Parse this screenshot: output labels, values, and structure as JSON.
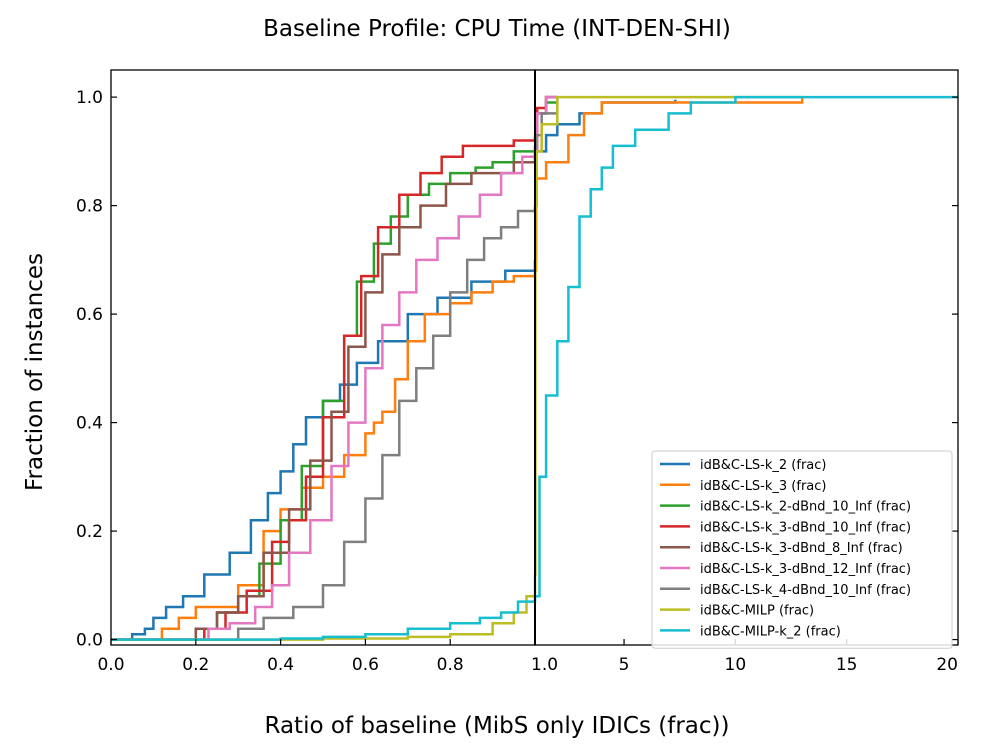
{
  "chart_data": {
    "type": "line",
    "title": "Baseline Profile: CPU Time (INT-DEN-SHI)",
    "xlabel": "Ratio of baseline (MibS only IDICs (frac))",
    "ylabel": "Fraction of instances",
    "left_panel": {
      "xlim": [
        0.0,
        1.0
      ],
      "ylim": [
        -0.01,
        1.05
      ],
      "xticks": [
        "0.0",
        "0.2",
        "0.4",
        "0.6",
        "0.8"
      ],
      "yticks": [
        "0.0",
        "0.2",
        "0.4",
        "0.6",
        "0.8",
        "1.0"
      ]
    },
    "right_panel": {
      "xlim": [
        1.0,
        20.0
      ],
      "xticks": [
        "1.0",
        "5",
        "10",
        "15",
        "20"
      ]
    },
    "legend_position": "lower-right",
    "series": [
      {
        "name": "idB&C-LS-k_2 (frac)",
        "color": "#1f77b4",
        "left": [
          [
            0,
            0
          ],
          [
            0.05,
            0
          ],
          [
            0.05,
            0.01
          ],
          [
            0.08,
            0.02
          ],
          [
            0.1,
            0.04
          ],
          [
            0.13,
            0.06
          ],
          [
            0.17,
            0.08
          ],
          [
            0.22,
            0.12
          ],
          [
            0.28,
            0.16
          ],
          [
            0.33,
            0.22
          ],
          [
            0.37,
            0.27
          ],
          [
            0.4,
            0.31
          ],
          [
            0.43,
            0.36
          ],
          [
            0.46,
            0.41
          ],
          [
            0.5,
            0.44
          ],
          [
            0.54,
            0.47
          ],
          [
            0.58,
            0.51
          ],
          [
            0.63,
            0.55
          ],
          [
            0.7,
            0.6
          ],
          [
            0.77,
            0.63
          ],
          [
            0.85,
            0.66
          ],
          [
            0.93,
            0.68
          ],
          [
            1.0,
            0.7
          ]
        ],
        "right": [
          [
            1.0,
            0.7
          ],
          [
            1.05,
            0.9
          ],
          [
            1.5,
            0.93
          ],
          [
            2.0,
            0.95
          ],
          [
            3.0,
            0.97
          ],
          [
            4.0,
            0.99
          ],
          [
            7.3,
            0.995
          ]
        ]
      },
      {
        "name": "idB&C-LS-k_3 (frac)",
        "color": "#ff7f0e",
        "left": [
          [
            0,
            0
          ],
          [
            0.1,
            0
          ],
          [
            0.12,
            0.02
          ],
          [
            0.16,
            0.04
          ],
          [
            0.2,
            0.06
          ],
          [
            0.25,
            0.06
          ],
          [
            0.3,
            0.1
          ],
          [
            0.36,
            0.2
          ],
          [
            0.4,
            0.24
          ],
          [
            0.45,
            0.28
          ],
          [
            0.5,
            0.3
          ],
          [
            0.55,
            0.34
          ],
          [
            0.6,
            0.38
          ],
          [
            0.62,
            0.4
          ],
          [
            0.64,
            0.42
          ],
          [
            0.67,
            0.48
          ],
          [
            0.7,
            0.55
          ],
          [
            0.74,
            0.6
          ],
          [
            0.8,
            0.62
          ],
          [
            0.85,
            0.64
          ],
          [
            0.9,
            0.66
          ],
          [
            0.95,
            0.67
          ],
          [
            1.0,
            0.68
          ]
        ],
        "right": [
          [
            1.0,
            0.68
          ],
          [
            1.05,
            0.85
          ],
          [
            1.5,
            0.88
          ],
          [
            2.5,
            0.93
          ],
          [
            3.2,
            0.97
          ],
          [
            4.0,
            0.99
          ],
          [
            13.0,
            1.0
          ]
        ]
      },
      {
        "name": "idB&C-LS-k_2-dBnd_10_Inf (frac)",
        "color": "#2ca02c",
        "left": [
          [
            0,
            0
          ],
          [
            0.18,
            0
          ],
          [
            0.2,
            0.02
          ],
          [
            0.25,
            0.05
          ],
          [
            0.3,
            0.08
          ],
          [
            0.35,
            0.14
          ],
          [
            0.4,
            0.22
          ],
          [
            0.45,
            0.32
          ],
          [
            0.5,
            0.44
          ],
          [
            0.55,
            0.56
          ],
          [
            0.58,
            0.66
          ],
          [
            0.62,
            0.73
          ],
          [
            0.66,
            0.78
          ],
          [
            0.7,
            0.82
          ],
          [
            0.75,
            0.84
          ],
          [
            0.8,
            0.86
          ],
          [
            0.86,
            0.87
          ],
          [
            0.9,
            0.88
          ],
          [
            0.95,
            0.9
          ],
          [
            1.0,
            0.91
          ]
        ],
        "right": [
          [
            1.0,
            0.91
          ],
          [
            1.1,
            0.97
          ],
          [
            1.5,
            0.99
          ],
          [
            2.0,
            1.0
          ]
        ]
      },
      {
        "name": "idB&C-LS-k_3-dBnd_10_Inf (frac)",
        "color": "#d62728",
        "left": [
          [
            0,
            0
          ],
          [
            0.2,
            0
          ],
          [
            0.22,
            0.02
          ],
          [
            0.27,
            0.05
          ],
          [
            0.32,
            0.09
          ],
          [
            0.38,
            0.18
          ],
          [
            0.42,
            0.22
          ],
          [
            0.46,
            0.3
          ],
          [
            0.5,
            0.41
          ],
          [
            0.55,
            0.56
          ],
          [
            0.59,
            0.67
          ],
          [
            0.63,
            0.76
          ],
          [
            0.68,
            0.82
          ],
          [
            0.73,
            0.86
          ],
          [
            0.78,
            0.89
          ],
          [
            0.83,
            0.91
          ],
          [
            0.9,
            0.91
          ],
          [
            0.95,
            0.92
          ],
          [
            1.0,
            0.93
          ]
        ],
        "right": [
          [
            1.0,
            0.93
          ],
          [
            1.1,
            0.98
          ],
          [
            1.5,
            1.0
          ],
          [
            2.0,
            1.0
          ]
        ]
      },
      {
        "name": "idB&C-LS-k_3-dBnd_8_Inf (frac)",
        "color": "#8c564b",
        "left": [
          [
            0,
            0
          ],
          [
            0.17,
            0
          ],
          [
            0.2,
            0.02
          ],
          [
            0.25,
            0.05
          ],
          [
            0.3,
            0.08
          ],
          [
            0.36,
            0.16
          ],
          [
            0.42,
            0.24
          ],
          [
            0.47,
            0.33
          ],
          [
            0.52,
            0.42
          ],
          [
            0.56,
            0.54
          ],
          [
            0.6,
            0.64
          ],
          [
            0.64,
            0.71
          ],
          [
            0.68,
            0.76
          ],
          [
            0.73,
            0.8
          ],
          [
            0.79,
            0.84
          ],
          [
            0.85,
            0.86
          ],
          [
            0.9,
            0.86
          ],
          [
            0.95,
            0.88
          ],
          [
            1.0,
            0.9
          ]
        ],
        "right": [
          [
            1.0,
            0.9
          ],
          [
            1.1,
            0.97
          ],
          [
            1.5,
            1.0
          ],
          [
            2.0,
            1.0
          ]
        ]
      },
      {
        "name": "idB&C-LS-k_3-dBnd_12_Inf (frac)",
        "color": "#e377c2",
        "left": [
          [
            0,
            0
          ],
          [
            0.2,
            0
          ],
          [
            0.23,
            0.02
          ],
          [
            0.28,
            0.03
          ],
          [
            0.34,
            0.06
          ],
          [
            0.38,
            0.1
          ],
          [
            0.42,
            0.16
          ],
          [
            0.47,
            0.22
          ],
          [
            0.52,
            0.32
          ],
          [
            0.56,
            0.4
          ],
          [
            0.6,
            0.5
          ],
          [
            0.64,
            0.58
          ],
          [
            0.68,
            0.64
          ],
          [
            0.72,
            0.7
          ],
          [
            0.77,
            0.74
          ],
          [
            0.82,
            0.78
          ],
          [
            0.87,
            0.82
          ],
          [
            0.92,
            0.86
          ],
          [
            0.97,
            0.89
          ],
          [
            1.0,
            0.9
          ]
        ],
        "right": [
          [
            1.0,
            0.9
          ],
          [
            1.1,
            0.97
          ],
          [
            1.5,
            1.0
          ],
          [
            2.0,
            1.0
          ]
        ]
      },
      {
        "name": "idB&C-LS-k_4-dBnd_10_Inf (frac)",
        "color": "#7f7f7f",
        "left": [
          [
            0,
            0
          ],
          [
            0.25,
            0
          ],
          [
            0.3,
            0.02
          ],
          [
            0.36,
            0.04
          ],
          [
            0.43,
            0.06
          ],
          [
            0.5,
            0.1
          ],
          [
            0.55,
            0.18
          ],
          [
            0.6,
            0.26
          ],
          [
            0.64,
            0.34
          ],
          [
            0.68,
            0.44
          ],
          [
            0.72,
            0.5
          ],
          [
            0.76,
            0.56
          ],
          [
            0.8,
            0.64
          ],
          [
            0.84,
            0.7
          ],
          [
            0.88,
            0.74
          ],
          [
            0.92,
            0.76
          ],
          [
            0.96,
            0.79
          ],
          [
            1.0,
            0.8
          ]
        ],
        "right": [
          [
            1.0,
            0.8
          ],
          [
            1.05,
            0.93
          ],
          [
            1.3,
            0.97
          ],
          [
            2.0,
            1.0
          ]
        ]
      },
      {
        "name": "idB&C-MILP (frac)",
        "color": "#bcbd22",
        "left": [
          [
            0,
            0
          ],
          [
            0.4,
            0
          ],
          [
            0.5,
            0.002
          ],
          [
            0.6,
            0.002
          ],
          [
            0.7,
            0.005
          ],
          [
            0.8,
            0.01
          ],
          [
            0.9,
            0.03
          ],
          [
            0.95,
            0.05
          ],
          [
            0.98,
            0.08
          ],
          [
            1.0,
            0.12
          ]
        ],
        "right": [
          [
            1.0,
            0.12
          ],
          [
            1.02,
            0.8
          ],
          [
            1.08,
            0.9
          ],
          [
            1.3,
            0.95
          ],
          [
            2.0,
            1.0
          ],
          [
            13.0,
            1.0
          ]
        ]
      },
      {
        "name": "idB&C-MILP-k_2 (frac)",
        "color": "#17becf",
        "left": [
          [
            0,
            0
          ],
          [
            0.35,
            0
          ],
          [
            0.4,
            0.002
          ],
          [
            0.5,
            0.005
          ],
          [
            0.6,
            0.01
          ],
          [
            0.7,
            0.02
          ],
          [
            0.8,
            0.03
          ],
          [
            0.87,
            0.04
          ],
          [
            0.92,
            0.05
          ],
          [
            0.96,
            0.07
          ],
          [
            1.0,
            0.08
          ]
        ],
        "right": [
          [
            1.0,
            0.08
          ],
          [
            1.2,
            0.3
          ],
          [
            1.5,
            0.45
          ],
          [
            2.0,
            0.55
          ],
          [
            2.5,
            0.65
          ],
          [
            3.0,
            0.78
          ],
          [
            3.5,
            0.83
          ],
          [
            4.0,
            0.87
          ],
          [
            4.5,
            0.91
          ],
          [
            5.5,
            0.94
          ],
          [
            7.0,
            0.97
          ],
          [
            8.0,
            0.99
          ],
          [
            10.0,
            1.0
          ],
          [
            20.0,
            1.0
          ]
        ]
      }
    ]
  }
}
